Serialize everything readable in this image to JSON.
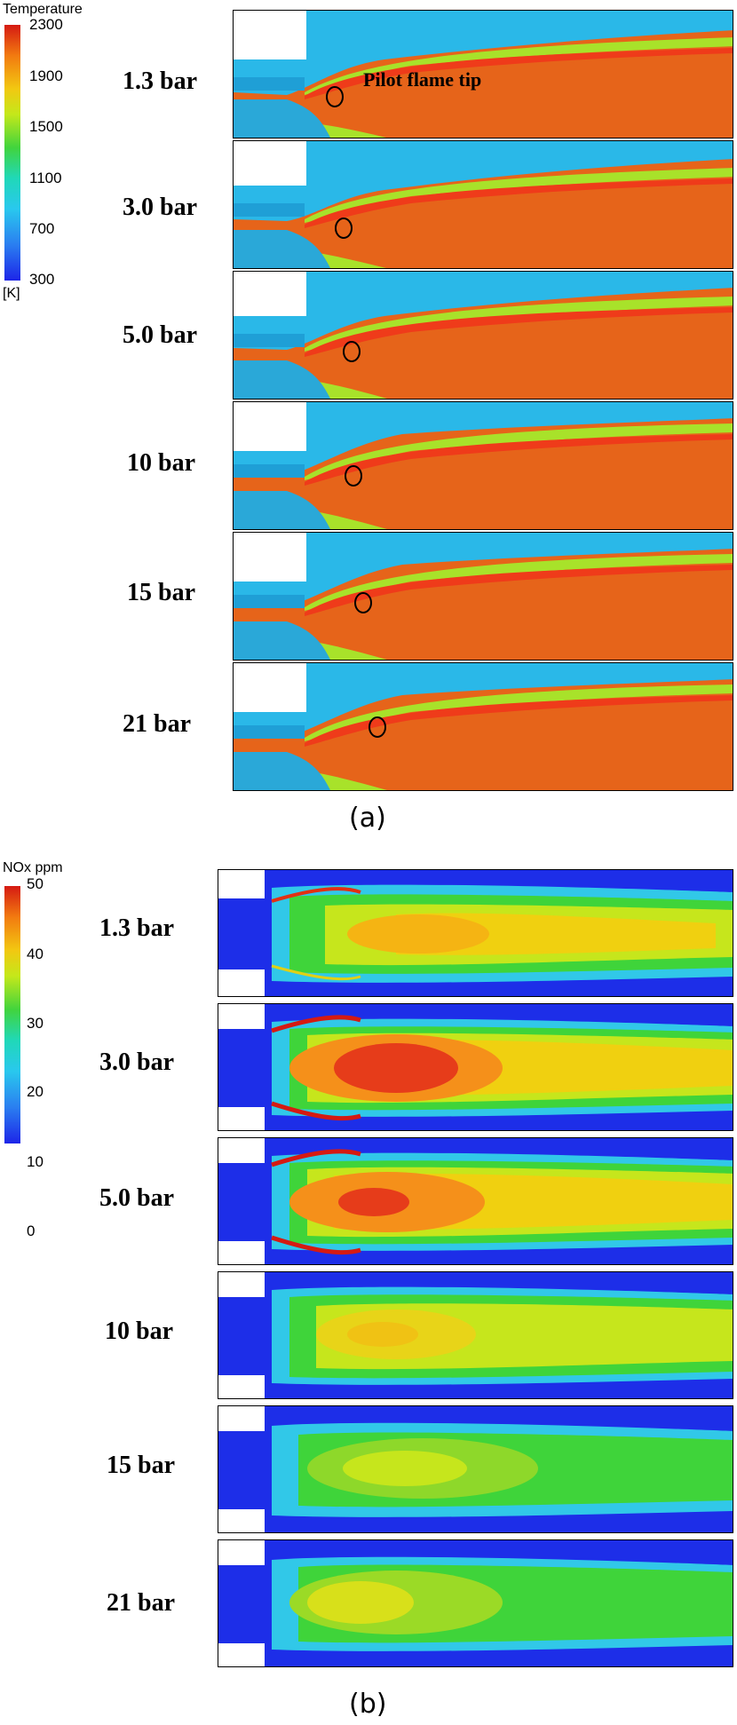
{
  "figure_a": {
    "colorbar": {
      "title": "Temperature",
      "ticks": [
        "2300",
        "1900",
        "1500",
        "1100",
        "700",
        "300"
      ],
      "unit": "[K]",
      "colors": [
        "#d51a12",
        "#f27a10",
        "#f2c811",
        "#c4e81a",
        "#41d43d",
        "#20d8b8",
        "#29c8ee",
        "#2a7ef0",
        "#1d25e8"
      ]
    },
    "annotation": "Pilot flame tip",
    "panels": [
      {
        "label": "1.3 bar"
      },
      {
        "label": "3.0 bar"
      },
      {
        "label": "5.0 bar"
      },
      {
        "label": "10 bar"
      },
      {
        "label": "15 bar"
      },
      {
        "label": "21 bar"
      }
    ],
    "caption": "(a)"
  },
  "figure_b": {
    "colorbar": {
      "title": "NOx ppm",
      "ticks": [
        "50",
        "40",
        "30",
        "20",
        "10",
        "0"
      ],
      "colors": [
        "#d51a12",
        "#f27a10",
        "#f2c811",
        "#c4e81a",
        "#41d43d",
        "#20d8b8",
        "#29c8ee",
        "#2a7ef0",
        "#1d25e8"
      ]
    },
    "panels": [
      {
        "label": "1.3 bar"
      },
      {
        "label": "3.0 bar"
      },
      {
        "label": "5.0 bar"
      },
      {
        "label": "10 bar"
      },
      {
        "label": "15 bar"
      },
      {
        "label": "21 bar"
      }
    ],
    "caption": "(b)"
  }
}
